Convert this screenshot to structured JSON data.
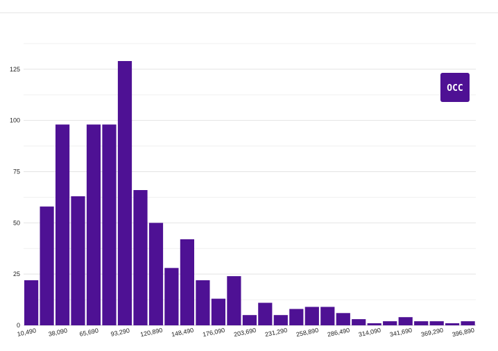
{
  "chart_data": {
    "type": "bar",
    "title": "",
    "xlabel": "",
    "ylabel": "",
    "ylim": [
      0,
      130
    ],
    "y_ticks": [
      0,
      25,
      50,
      75,
      100,
      125
    ],
    "grid": true,
    "bar_color": "#4e1194",
    "x_tick_labels": [
      "10,490",
      "38,090",
      "65,690",
      "93,290",
      "120,890",
      "148,490",
      "176,090",
      "203,690",
      "231,290",
      "258,890",
      "286,490",
      "314,090",
      "341,690",
      "369,290",
      "396,890"
    ],
    "values": [
      22,
      58,
      98,
      63,
      98,
      98,
      129,
      66,
      50,
      28,
      42,
      22,
      13,
      24,
      5,
      11,
      5,
      8,
      9,
      9,
      6,
      3,
      1,
      2,
      4,
      2,
      2,
      1,
      2
    ]
  },
  "logo": {
    "text": "OCC",
    "color": "#4e1194"
  }
}
